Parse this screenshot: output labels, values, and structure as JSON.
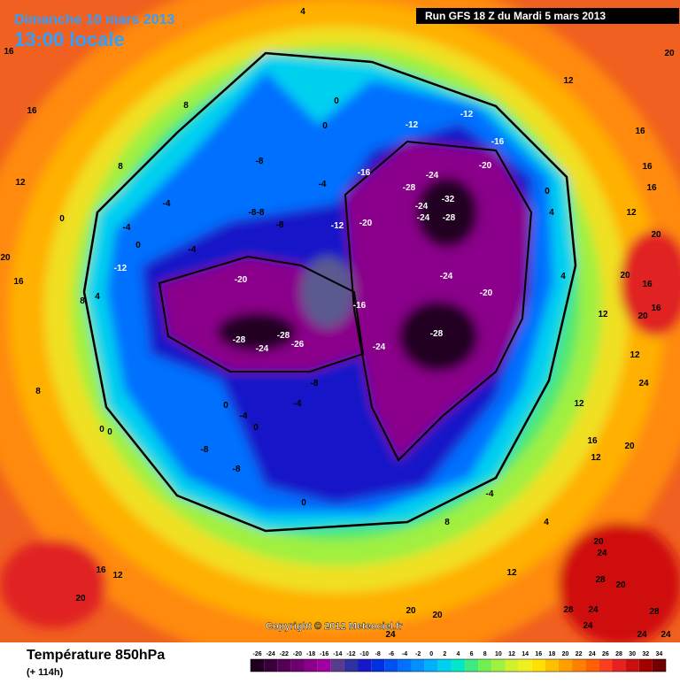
{
  "header": {
    "date": "Dimanche 10 mars 2013",
    "time": "13:00 locale",
    "run": "Run GFS 18 Z du Mardi 5 mars 2013"
  },
  "copyright": "Copyright © 2012 Meteociel.fr",
  "legend": {
    "title": "Température 850hPa",
    "lead": "(+ 114h)",
    "ticks": [
      -26,
      -24,
      -22,
      -20,
      -18,
      -16,
      -14,
      -12,
      -10,
      -8,
      -6,
      -4,
      -2,
      0,
      2,
      4,
      6,
      8,
      10,
      12,
      14,
      16,
      18,
      20,
      22,
      24,
      26,
      28,
      30,
      32,
      34
    ],
    "colors": [
      "#200020",
      "#3a003a",
      "#550055",
      "#6e006e",
      "#8a008a",
      "#a000a0",
      "#5a3a8a",
      "#3030a0",
      "#1818c8",
      "#0030e0",
      "#0050f0",
      "#0070ff",
      "#0090ff",
      "#00b0ff",
      "#00d0f0",
      "#00e8c8",
      "#40e880",
      "#70f050",
      "#a0f040",
      "#d0f030",
      "#f0f020",
      "#ffe000",
      "#ffc000",
      "#ffa000",
      "#ff8000",
      "#ff6000",
      "#f84020",
      "#e82020",
      "#c81010",
      "#a00000",
      "#700000"
    ]
  },
  "map_labels": [
    -28,
    -24,
    -28,
    -26,
    -20,
    -16,
    -24,
    -28,
    -24,
    -20,
    -24,
    -24,
    -32,
    -28,
    -28,
    -24,
    -20,
    -16,
    -12,
    -12,
    -16,
    -20,
    -12,
    -8,
    -8,
    -8,
    -8,
    -4,
    -4,
    -4,
    -4,
    -12,
    -8,
    -4,
    -4,
    -8,
    -8,
    0,
    0,
    0,
    -4,
    0,
    4,
    8,
    8,
    12,
    16,
    16,
    4,
    0,
    0,
    12,
    16,
    16,
    16,
    12,
    20,
    20,
    16,
    16,
    20,
    12,
    12,
    24,
    12,
    16,
    20,
    12,
    20,
    24,
    28,
    20,
    28,
    24,
    24,
    28,
    24,
    24,
    20,
    20,
    20,
    24,
    12,
    16,
    12,
    20,
    8,
    0,
    0,
    0,
    0,
    16,
    20,
    8,
    4,
    8,
    4,
    4
  ]
}
